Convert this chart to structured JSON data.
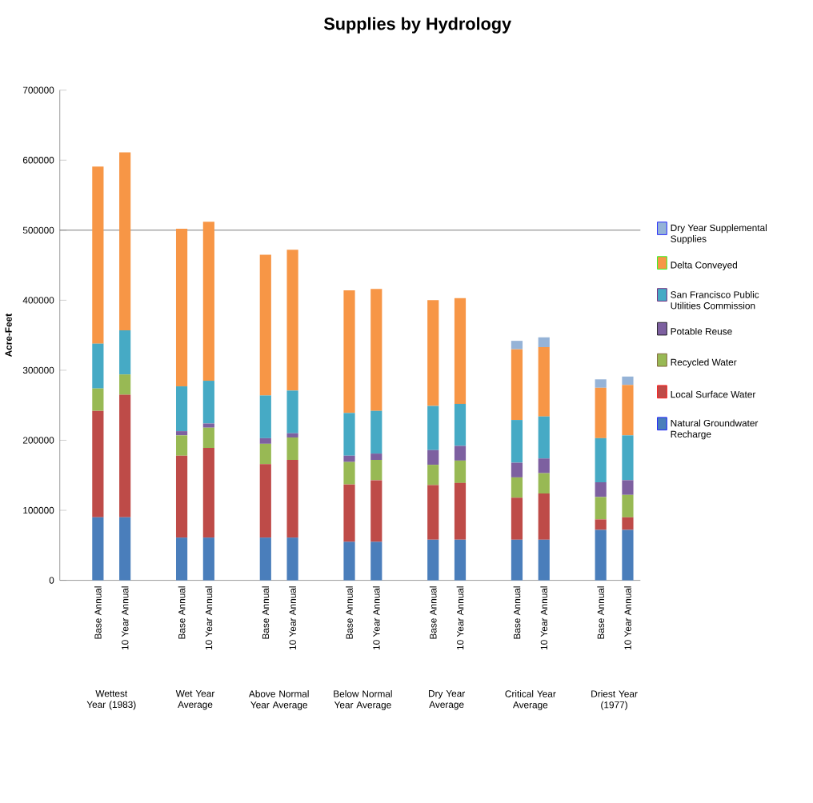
{
  "chart_data": {
    "type": "bar",
    "stacked": true,
    "title": "Supplies by Hydrology",
    "ylabel": "Acre-Feet",
    "categories": [
      "Base Annual",
      "10 Year Annual",
      "Base Annual",
      "10 Year Annual",
      "Base Annual",
      "10 Year Annual",
      "Base Annual",
      "10 Year Annual",
      "Base Annual",
      "10 Year Annual",
      "Base Annual",
      "10 Year Annual",
      "Base Annual",
      "10 Year Annual"
    ],
    "series": [
      {
        "name": "Natural Groundwater Recharge",
        "color": "#4a7ebb",
        "values": [
          90000,
          90000,
          61000,
          61000,
          61000,
          61000,
          55000,
          55000,
          58000,
          58000,
          58000,
          58000,
          72000,
          72000
        ]
      },
      {
        "name": "Local Surface Water",
        "color": "#be4b48",
        "values": [
          152000,
          175000,
          117000,
          128000,
          105000,
          111000,
          82000,
          88000,
          78000,
          81000,
          60000,
          66000,
          15000,
          18000
        ]
      },
      {
        "name": "Recycled Water",
        "color": "#98b954",
        "values": [
          32000,
          29000,
          29000,
          29000,
          29000,
          32000,
          32000,
          29000,
          29000,
          32000,
          29000,
          29000,
          32000,
          32000
        ]
      },
      {
        "name": "Potable Reuse",
        "color": "#7d60a0",
        "values": [
          0,
          0,
          6000,
          6000,
          8000,
          6000,
          9000,
          9000,
          21000,
          21000,
          21000,
          21000,
          21000,
          21000
        ]
      },
      {
        "name": "San Francisco Public Utilities Commission",
        "color": "#46aac5",
        "values": [
          64000,
          63000,
          64000,
          61000,
          61000,
          61000,
          61000,
          61000,
          63000,
          60000,
          61000,
          60000,
          63000,
          64000
        ]
      },
      {
        "name": "Delta Conveyed",
        "color": "#f79646",
        "values": [
          253000,
          254000,
          225000,
          227000,
          201000,
          201000,
          175000,
          174000,
          151000,
          151000,
          101000,
          99000,
          72000,
          72000
        ]
      },
      {
        "name": "Dry Year Supplemental Supplies",
        "color": "#95b3d7",
        "values": [
          0,
          0,
          0,
          0,
          0,
          0,
          0,
          0,
          0,
          0,
          12000,
          14000,
          12000,
          12000
        ]
      }
    ],
    "ylim": [
      0,
      700000
    ],
    "yticks": [
      0,
      100000,
      200000,
      300000,
      400000,
      500000,
      600000,
      700000
    ],
    "ref_lines": [
      {
        "axis": "y",
        "value": 500000,
        "color": "#595959"
      }
    ],
    "legend": "right",
    "annotations": [
      "Wettest Year (1983)",
      "Wet Year Average",
      "Above Normal Year Average",
      "Below Normal Year Average",
      "Dry Year Average",
      "Critical Year Average",
      "Driest Year (1977)"
    ]
  }
}
